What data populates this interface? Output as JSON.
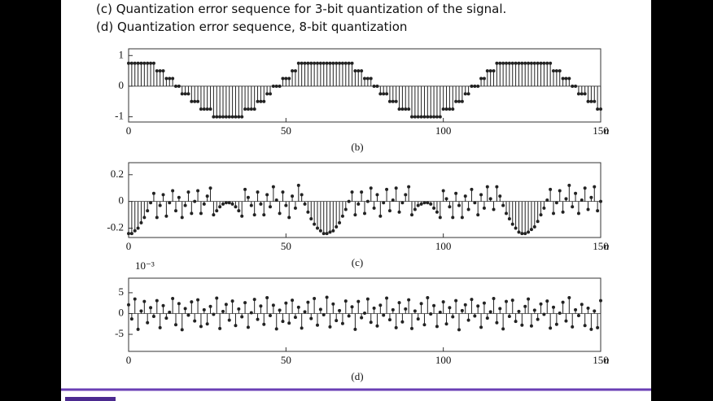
{
  "header": {
    "lines": [
      "(c) Quantization error sequence for 3-bit quantization of the signal.",
      "(d) Quantization error sequence, 8-bit quantization"
    ]
  },
  "chart_data": [
    {
      "type": "stem",
      "caption": "(b)",
      "x_label": "n",
      "color": "#222222",
      "x": [
        0,
        1,
        2,
        3,
        4,
        5,
        6,
        7,
        8,
        9,
        10,
        11,
        12,
        13,
        14,
        15,
        16,
        17,
        18,
        19,
        20,
        21,
        22,
        23,
        24,
        25,
        26,
        27,
        28,
        29,
        30,
        31,
        32,
        33,
        34,
        35,
        36,
        37,
        38,
        39,
        40,
        41,
        42,
        43,
        44,
        45,
        46,
        47,
        48,
        49,
        50,
        51,
        52,
        53,
        54,
        55,
        56,
        57,
        58,
        59,
        60,
        61,
        62,
        63,
        64,
        65,
        66,
        67,
        68,
        69,
        70,
        71,
        72,
        73,
        74,
        75,
        76,
        77,
        78,
        79,
        80,
        81,
        82,
        83,
        84,
        85,
        86,
        87,
        88,
        89,
        90,
        91,
        92,
        93,
        94,
        95,
        96,
        97,
        98,
        99,
        100,
        101,
        102,
        103,
        104,
        105,
        106,
        107,
        108,
        109,
        110,
        111,
        112,
        113,
        114,
        115,
        116,
        117,
        118,
        119,
        120,
        121,
        122,
        123,
        124,
        125,
        126,
        127,
        128,
        129,
        130,
        131,
        132,
        133,
        134,
        135,
        136,
        137,
        138,
        139,
        140,
        141,
        142,
        143,
        144,
        145,
        146,
        147,
        148,
        149,
        150
      ],
      "values": [
        0.75,
        0.75,
        0.75,
        0.75,
        0.75,
        0.75,
        0.75,
        0.75,
        0.75,
        0.5,
        0.5,
        0.5,
        0.25,
        0.25,
        0.25,
        0,
        0,
        -0.25,
        -0.25,
        -0.25,
        -0.5,
        -0.5,
        -0.5,
        -0.75,
        -0.75,
        -0.75,
        -0.75,
        -1,
        -1,
        -1,
        -1,
        -1,
        -1,
        -1,
        -1,
        -1,
        -1,
        -0.75,
        -0.75,
        -0.75,
        -0.75,
        -0.5,
        -0.5,
        -0.5,
        -0.25,
        -0.25,
        0,
        0,
        0,
        0.25,
        0.25,
        0.25,
        0.5,
        0.5,
        0.75,
        0.75,
        0.75,
        0.75,
        0.75,
        0.75,
        0.75,
        0.75,
        0.75,
        0.75,
        0.75,
        0.75,
        0.75,
        0.75,
        0.75,
        0.75,
        0.75,
        0.75,
        0.5,
        0.5,
        0.5,
        0.25,
        0.25,
        0.25,
        0,
        0,
        -0.25,
        -0.25,
        -0.25,
        -0.5,
        -0.5,
        -0.5,
        -0.75,
        -0.75,
        -0.75,
        -0.75,
        -1,
        -1,
        -1,
        -1,
        -1,
        -1,
        -1,
        -1,
        -1,
        -1,
        -0.75,
        -0.75,
        -0.75,
        -0.75,
        -0.5,
        -0.5,
        -0.5,
        -0.25,
        -0.25,
        0,
        0,
        0,
        0.25,
        0.25,
        0.5,
        0.5,
        0.5,
        0.75,
        0.75,
        0.75,
        0.75,
        0.75,
        0.75,
        0.75,
        0.75,
        0.75,
        0.75,
        0.75,
        0.75,
        0.75,
        0.75,
        0.75,
        0.75,
        0.75,
        0.75,
        0.5,
        0.5,
        0.5,
        0.25,
        0.25,
        0.25,
        0,
        0,
        -0.25,
        -0.25,
        -0.25,
        -0.5,
        -0.5,
        -0.5,
        -0.75,
        -0.75
      ],
      "xlim": [
        0,
        150
      ],
      "xticks": [
        0,
        50,
        100,
        150
      ],
      "ylim": [
        -1.17,
        1.22
      ],
      "yticks": [
        -1,
        0,
        1
      ]
    },
    {
      "type": "stem",
      "caption": "(c)",
      "x_label": "n",
      "color": "#222222",
      "x": [
        0,
        1,
        2,
        3,
        4,
        5,
        6,
        7,
        8,
        9,
        10,
        11,
        12,
        13,
        14,
        15,
        16,
        17,
        18,
        19,
        20,
        21,
        22,
        23,
        24,
        25,
        26,
        27,
        28,
        29,
        30,
        31,
        32,
        33,
        34,
        35,
        36,
        37,
        38,
        39,
        40,
        41,
        42,
        43,
        44,
        45,
        46,
        47,
        48,
        49,
        50,
        51,
        52,
        53,
        54,
        55,
        56,
        57,
        58,
        59,
        60,
        61,
        62,
        63,
        64,
        65,
        66,
        67,
        68,
        69,
        70,
        71,
        72,
        73,
        74,
        75,
        76,
        77,
        78,
        79,
        80,
        81,
        82,
        83,
        84,
        85,
        86,
        87,
        88,
        89,
        90,
        91,
        92,
        93,
        94,
        95,
        96,
        97,
        98,
        99,
        100,
        101,
        102,
        103,
        104,
        105,
        106,
        107,
        108,
        109,
        110,
        111,
        112,
        113,
        114,
        115,
        116,
        117,
        118,
        119,
        120,
        121,
        122,
        123,
        124,
        125,
        126,
        127,
        128,
        129,
        130,
        131,
        132,
        133,
        134,
        135,
        136,
        137,
        138,
        139,
        140,
        141,
        142,
        143,
        144,
        145,
        146,
        147,
        148,
        149,
        150
      ],
      "values": [
        -0.24,
        -0.24,
        -0.22,
        -0.2,
        -0.16,
        -0.12,
        -0.07,
        -0.01,
        0.06,
        -0.12,
        -0.03,
        0.05,
        -0.11,
        -0.01,
        0.08,
        -0.07,
        0.03,
        -0.12,
        -0.03,
        0.07,
        -0.09,
        0,
        0.08,
        -0.09,
        -0.02,
        0.04,
        0.1,
        -0.1,
        -0.07,
        -0.04,
        -0.02,
        -0.01,
        -0.01,
        -0.02,
        -0.04,
        -0.07,
        -0.11,
        0.09,
        0.03,
        -0.03,
        -0.1,
        0.07,
        -0.02,
        -0.1,
        0.05,
        -0.04,
        0.11,
        0.01,
        -0.09,
        0.07,
        -0.03,
        -0.12,
        0.04,
        -0.05,
        0.12,
        0.05,
        -0.02,
        -0.08,
        -0.13,
        -0.17,
        -0.2,
        -0.22,
        -0.24,
        -0.24,
        -0.23,
        -0.22,
        -0.19,
        -0.16,
        -0.11,
        -0.06,
        0,
        0.07,
        -0.1,
        -0.02,
        0.07,
        -0.09,
        0,
        0.1,
        -0.05,
        0.05,
        -0.11,
        -0.01,
        0.09,
        -0.07,
        0.01,
        0.1,
        -0.08,
        -0.01,
        0.05,
        0.11,
        -0.1,
        -0.06,
        -0.03,
        -0.02,
        -0.01,
        -0.01,
        -0.02,
        -0.05,
        -0.08,
        -0.12,
        0.08,
        0.02,
        -0.04,
        -0.12,
        0.06,
        -0.03,
        -0.12,
        0.04,
        -0.06,
        0.09,
        -0.01,
        -0.1,
        0.05,
        -0.05,
        0.11,
        0.02,
        -0.06,
        0.11,
        0.04,
        -0.03,
        -0.09,
        -0.13,
        -0.17,
        -0.2,
        -0.23,
        -0.24,
        -0.24,
        -0.23,
        -0.21,
        -0.19,
        -0.15,
        -0.1,
        -0.05,
        0.01,
        0.09,
        -0.09,
        -0.01,
        0.08,
        -0.08,
        0.02,
        0.12,
        -0.04,
        0.06,
        -0.09,
        0.01,
        0.1,
        -0.06,
        0.03,
        0.11,
        -0.07,
        0
      ],
      "xlim": [
        0,
        150
      ],
      "xticks": [
        0,
        50,
        100,
        150
      ],
      "ylim": [
        -0.27,
        0.29
      ],
      "yticks": [
        -0.2,
        0,
        0.2
      ]
    },
    {
      "type": "stem",
      "caption": "(d)",
      "x_label": "n",
      "y_scale_label": "10⁻³",
      "color": "#222222",
      "x": [
        0,
        1,
        2,
        3,
        4,
        5,
        6,
        7,
        8,
        9,
        10,
        11,
        12,
        13,
        14,
        15,
        16,
        17,
        18,
        19,
        20,
        21,
        22,
        23,
        24,
        25,
        26,
        27,
        28,
        29,
        30,
        31,
        32,
        33,
        34,
        35,
        36,
        37,
        38,
        39,
        40,
        41,
        42,
        43,
        44,
        45,
        46,
        47,
        48,
        49,
        50,
        51,
        52,
        53,
        54,
        55,
        56,
        57,
        58,
        59,
        60,
        61,
        62,
        63,
        64,
        65,
        66,
        67,
        68,
        69,
        70,
        71,
        72,
        73,
        74,
        75,
        76,
        77,
        78,
        79,
        80,
        81,
        82,
        83,
        84,
        85,
        86,
        87,
        88,
        89,
        90,
        91,
        92,
        93,
        94,
        95,
        96,
        97,
        98,
        99,
        100,
        101,
        102,
        103,
        104,
        105,
        106,
        107,
        108,
        109,
        110,
        111,
        112,
        113,
        114,
        115,
        116,
        117,
        118,
        119,
        120,
        121,
        122,
        123,
        124,
        125,
        126,
        127,
        128,
        129,
        130,
        131,
        132,
        133,
        134,
        135,
        136,
        137,
        138,
        139,
        140,
        141,
        142,
        143,
        144,
        145,
        146,
        147,
        148,
        149,
        150
      ],
      "values": [
        2.1,
        -1.3,
        3.5,
        -3.8,
        0.6,
        2.9,
        -2.2,
        1.4,
        -0.7,
        3.1,
        -3.4,
        1.9,
        -1.1,
        0.3,
        3.6,
        -2.7,
        2.4,
        -3.9,
        1.2,
        -0.4,
        2.8,
        -1.8,
        3.3,
        -3.1,
        0.9,
        -2.5,
        1.7,
        -0.2,
        3.7,
        -3.6,
        0.5,
        2.2,
        -1.6,
        3.0,
        -2.9,
        1.1,
        -0.8,
        2.6,
        -3.3,
        0.2,
        3.4,
        -1.4,
        1.8,
        -2.6,
        3.8,
        -0.5,
        2.0,
        -3.7,
        0.8,
        -1.9,
        2.5,
        -2.3,
        3.2,
        -0.9,
        1.5,
        -3.5,
        0.4,
        2.7,
        -1.2,
        3.6,
        -2.8,
        1.0,
        -0.3,
        3.9,
        -3.2,
        2.3,
        -1.7,
        0.7,
        -2.4,
        3.0,
        -0.6,
        1.6,
        -3.8,
        2.9,
        -1.0,
        0.1,
        3.5,
        -2.1,
        1.3,
        -3.0,
        2.0,
        -0.4,
        3.7,
        -1.5,
        0.9,
        -3.4,
        2.6,
        -2.0,
        1.1,
        3.3,
        -3.6,
        0.6,
        -1.3,
        2.4,
        -2.7,
        3.8,
        -0.1,
        1.9,
        -3.1,
        0.3,
        2.8,
        -2.5,
        1.4,
        -0.8,
        3.1,
        -3.9,
        0.7,
        2.1,
        -1.6,
        3.4,
        -0.6,
        1.8,
        -3.3,
        2.5,
        -1.1,
        0.4,
        3.6,
        -2.2,
        1.2,
        -3.7,
        2.9,
        -0.7,
        3.2,
        -1.9,
        0.5,
        -2.8,
        1.7,
        3.5,
        -3.0,
        0.8,
        -1.4,
        2.3,
        -0.2,
        3.0,
        -3.5,
        1.5,
        -2.6,
        0.1,
        2.7,
        -1.8,
        3.8,
        -3.2,
        0.9,
        -0.5,
        2.2,
        -2.9,
        1.3,
        -3.8,
        0.6,
        -3.4,
        3.1
      ],
      "xlim": [
        0,
        150
      ],
      "xticks": [
        0,
        50,
        100,
        150
      ],
      "ylim": [
        -9.1,
        8.5
      ],
      "yticks": [
        -5,
        0,
        5
      ]
    }
  ]
}
